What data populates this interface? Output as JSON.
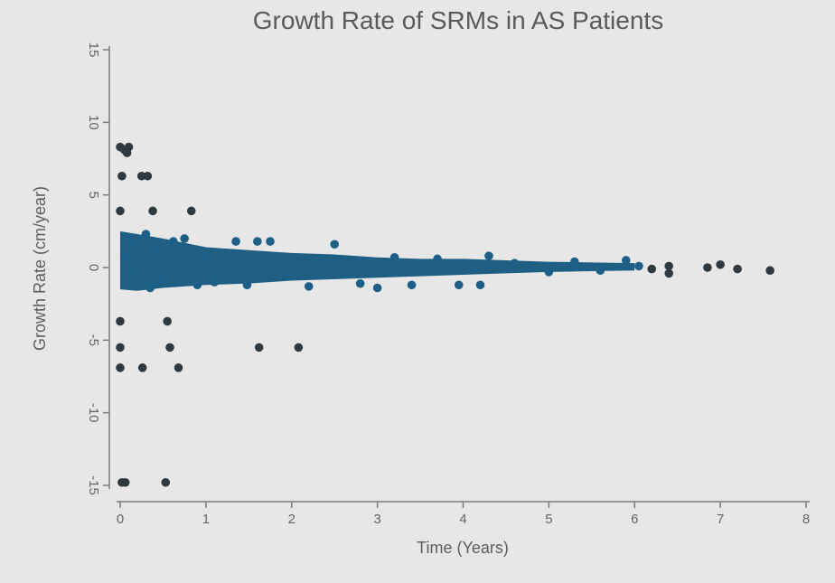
{
  "chart_data": {
    "type": "scatter",
    "title": "Growth Rate of SRMs in AS Patients",
    "xlabel": "Time (Years)",
    "ylabel": "Growth Rate (cm/year)",
    "xlim": [
      0,
      8
    ],
    "ylim": [
      -15,
      15
    ],
    "xticks": [
      "0",
      "1",
      "2",
      "3",
      "4",
      "5",
      "6",
      "7",
      "8"
    ],
    "yticks": [
      "-15",
      "-10",
      "-5",
      "0",
      "5",
      "10",
      "15"
    ],
    "grid": false,
    "colors": {
      "points": "#2f3a40",
      "cluster": "#1d5f86"
    },
    "dense_cluster": {
      "x": [
        0.0,
        0.2,
        0.5,
        1.0,
        1.5,
        2.0,
        2.5,
        3.0,
        3.5,
        4.0,
        4.5,
        5.0,
        5.5,
        6.0
      ],
      "y_min": [
        -1.5,
        -1.6,
        -1.4,
        -1.2,
        -1.1,
        -0.9,
        -0.8,
        -0.7,
        -0.6,
        -0.5,
        -0.4,
        -0.3,
        -0.25,
        -0.2
      ],
      "y_max": [
        2.5,
        2.3,
        2.0,
        1.4,
        1.2,
        1.0,
        0.9,
        0.7,
        0.6,
        0.6,
        0.5,
        0.4,
        0.35,
        0.3
      ]
    },
    "points": [
      {
        "x": 0.0,
        "y": 8.3
      },
      {
        "x": 0.05,
        "y": 8.1
      },
      {
        "x": 0.08,
        "y": 7.9
      },
      {
        "x": 0.1,
        "y": 8.3
      },
      {
        "x": 0.02,
        "y": 6.3
      },
      {
        "x": 0.25,
        "y": 6.3
      },
      {
        "x": 0.32,
        "y": 6.3
      },
      {
        "x": 0.0,
        "y": 3.9
      },
      {
        "x": 0.38,
        "y": 3.9
      },
      {
        "x": 0.83,
        "y": 3.9
      },
      {
        "x": 0.0,
        "y": -3.7
      },
      {
        "x": 0.55,
        "y": -3.7
      },
      {
        "x": 0.0,
        "y": -5.5
      },
      {
        "x": 0.58,
        "y": -5.5
      },
      {
        "x": 1.62,
        "y": -5.5
      },
      {
        "x": 2.08,
        "y": -5.5
      },
      {
        "x": 0.0,
        "y": -6.9
      },
      {
        "x": 0.26,
        "y": -6.9
      },
      {
        "x": 0.68,
        "y": -6.9
      },
      {
        "x": 0.02,
        "y": -14.8
      },
      {
        "x": 0.06,
        "y": -14.8
      },
      {
        "x": 0.53,
        "y": -14.8
      },
      {
        "x": 0.05,
        "y": 0.8
      },
      {
        "x": 0.12,
        "y": -0.4
      },
      {
        "x": 0.18,
        "y": 1.6
      },
      {
        "x": 0.3,
        "y": 2.3
      },
      {
        "x": 0.35,
        "y": -1.4
      },
      {
        "x": 0.42,
        "y": 1.1
      },
      {
        "x": 0.5,
        "y": -0.9
      },
      {
        "x": 0.62,
        "y": 1.8
      },
      {
        "x": 0.75,
        "y": 2.0
      },
      {
        "x": 0.9,
        "y": -1.2
      },
      {
        "x": 1.0,
        "y": 0.6
      },
      {
        "x": 1.1,
        "y": -1.0
      },
      {
        "x": 1.35,
        "y": 1.8
      },
      {
        "x": 1.6,
        "y": 1.8
      },
      {
        "x": 1.75,
        "y": 1.8
      },
      {
        "x": 1.48,
        "y": -1.2
      },
      {
        "x": 2.2,
        "y": -1.3
      },
      {
        "x": 2.5,
        "y": 1.6
      },
      {
        "x": 2.8,
        "y": -1.1
      },
      {
        "x": 3.0,
        "y": -1.4
      },
      {
        "x": 3.2,
        "y": 0.7
      },
      {
        "x": 3.4,
        "y": -1.2
      },
      {
        "x": 3.7,
        "y": 0.6
      },
      {
        "x": 3.95,
        "y": -1.2
      },
      {
        "x": 4.2,
        "y": -1.2
      },
      {
        "x": 4.3,
        "y": 0.8
      },
      {
        "x": 4.6,
        "y": 0.3
      },
      {
        "x": 5.0,
        "y": -0.3
      },
      {
        "x": 5.3,
        "y": 0.4
      },
      {
        "x": 5.6,
        "y": -0.2
      },
      {
        "x": 5.9,
        "y": 0.5
      },
      {
        "x": 6.05,
        "y": 0.1
      },
      {
        "x": 6.2,
        "y": -0.1
      },
      {
        "x": 6.4,
        "y": 0.1
      },
      {
        "x": 6.4,
        "y": -0.4
      },
      {
        "x": 6.85,
        "y": 0.0
      },
      {
        "x": 7.0,
        "y": 0.2
      },
      {
        "x": 7.2,
        "y": -0.1
      },
      {
        "x": 7.58,
        "y": -0.2
      }
    ]
  }
}
